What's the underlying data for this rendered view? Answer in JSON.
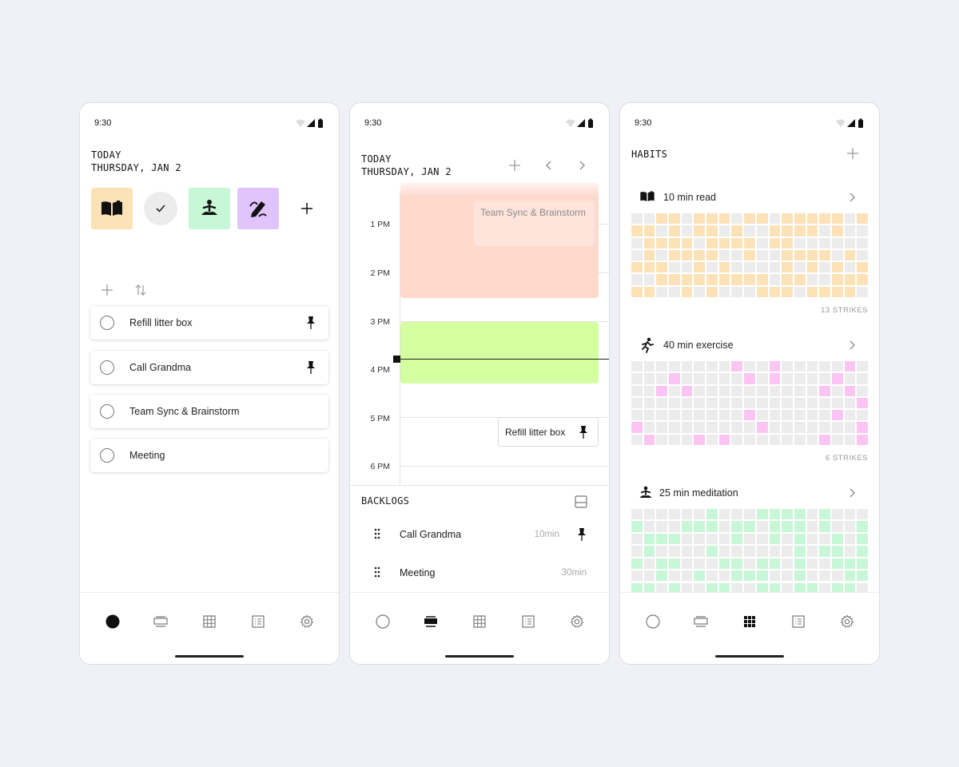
{
  "status": {
    "time": "9:30"
  },
  "screen1": {
    "today_label": "TODAY",
    "date_label": "THURSDAY, JAN 2",
    "habit_buttons": [
      {
        "icon": "book-icon",
        "color": "#fde2b8"
      },
      {
        "icon": "check-icon",
        "color": "#ececec"
      },
      {
        "icon": "meditation-icon",
        "color": "#c7f7d6"
      },
      {
        "icon": "pen-icon",
        "color": "#e0c4fb"
      }
    ],
    "tasks": [
      {
        "label": "Refill litter box",
        "pinned": true
      },
      {
        "label": "Call Grandma",
        "pinned": true
      },
      {
        "label": "Team Sync & Brainstorm",
        "pinned": false
      },
      {
        "label": "Meeting",
        "pinned": false
      }
    ]
  },
  "screen2": {
    "today_label": "TODAY",
    "date_label": "THURSDAY, JAN 2",
    "hours": [
      "1 PM",
      "2 PM",
      "3 PM",
      "4 PM",
      "5 PM",
      "6 PM"
    ],
    "events": [
      {
        "title": "Team Sync & Brainstorm",
        "color": "#ffd9cc"
      },
      {
        "title": "",
        "color": "#d5fea0"
      }
    ],
    "pinned_task": "Refill litter box",
    "backlogs_title": "BACKLOGS",
    "backlogs": [
      {
        "label": "Call Grandma",
        "duration": "10min",
        "pinned": true
      },
      {
        "label": "Meeting",
        "duration": "30min",
        "pinned": false
      }
    ]
  },
  "screen3": {
    "title": "HABITS",
    "habits": [
      {
        "icon": "book-icon",
        "name": "10 min read",
        "strikes": "13 STRIKES",
        "color": "#fde2b8"
      },
      {
        "icon": "running-icon",
        "name": "40 min exercise",
        "strikes": "6 STRIKES",
        "color": "#fcc4f2"
      },
      {
        "icon": "meditation-icon",
        "name": "25 min meditation",
        "strikes": "",
        "color": "#c7f7d6"
      }
    ]
  }
}
